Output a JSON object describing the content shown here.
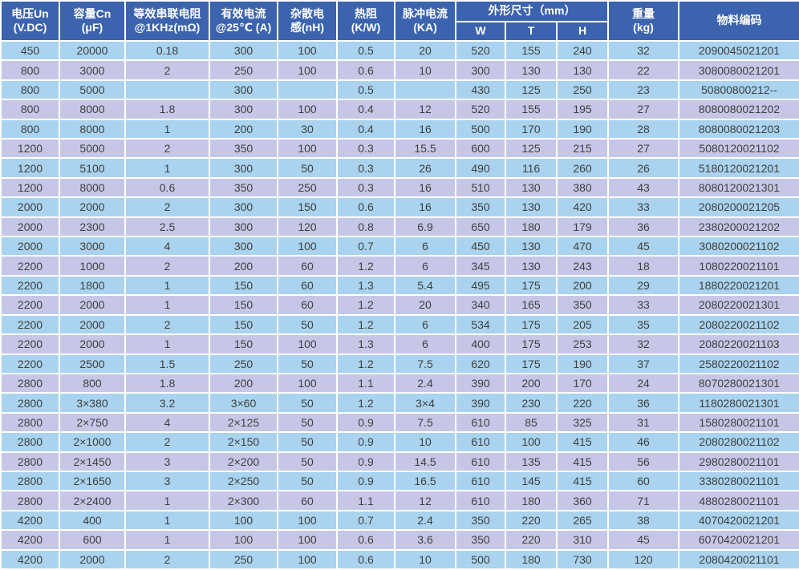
{
  "colors": {
    "header_bg": "#3b63ae",
    "row_alt_blue": "#a9d3ee",
    "row_alt_lavender": "#c6c7e7",
    "grid_line": "#ffffff",
    "cell_text": "#3f3f3f",
    "header_text": "#ffffff"
  },
  "table": {
    "column_ids": [
      "voltage",
      "capacitance",
      "esr",
      "current",
      "inductance",
      "thermal",
      "pulse",
      "w",
      "t",
      "h",
      "weight",
      "code"
    ],
    "header": {
      "voltage": "电压Un\n(V.DC)",
      "capacitance": "容量Cn\n(μF)",
      "esr": "等效串联电阻\n@1KHz(mΩ)",
      "current": "有效电流\n@25℃  (A)",
      "inductance": "杂散电\n感(nH)",
      "thermal": "热阻\n(K/W)",
      "pulse": "脉冲电流\n(KA)",
      "dimensions_group": "外形尺寸（mm）",
      "dim_w": "W",
      "dim_t": "T",
      "dim_h": "H",
      "weight": "重量\n(kg)",
      "code": "物料编码"
    },
    "rows": [
      [
        "450",
        "20000",
        "0.18",
        "300",
        "100",
        "0.5",
        "20",
        "520",
        "155",
        "240",
        "32",
        "2090045021201"
      ],
      [
        "800",
        "3000",
        "2",
        "250",
        "100",
        "0.6",
        "10",
        "300",
        "130",
        "130",
        "22",
        "3080080021201"
      ],
      [
        "800",
        "5000",
        "",
        "300",
        "",
        "0.5",
        "",
        "430",
        "125",
        "250",
        "23",
        "50800800212--"
      ],
      [
        "800",
        "8000",
        "1.8",
        "300",
        "100",
        "0.4",
        "12",
        "520",
        "155",
        "195",
        "27",
        "8080080021202"
      ],
      [
        "800",
        "8000",
        "1",
        "200",
        "30",
        "0.4",
        "16",
        "500",
        "170",
        "190",
        "28",
        "8080080021203"
      ],
      [
        "1200",
        "5000",
        "2",
        "350",
        "100",
        "0.3",
        "15.5",
        "600",
        "125",
        "215",
        "27",
        "5080120021102"
      ],
      [
        "1200",
        "5100",
        "1",
        "300",
        "50",
        "0.3",
        "26",
        "490",
        "116",
        "260",
        "26",
        "5180120021201"
      ],
      [
        "1200",
        "8000",
        "0.6",
        "350",
        "250",
        "0.3",
        "16",
        "510",
        "130",
        "380",
        "43",
        "8080120021301"
      ],
      [
        "2000",
        "2000",
        "2",
        "300",
        "150",
        "0.6",
        "16",
        "350",
        "130",
        "420",
        "33",
        "2080200021205"
      ],
      [
        "2000",
        "2300",
        "2.5",
        "300",
        "120",
        "0.8",
        "6.9",
        "650",
        "180",
        "179",
        "36",
        "2380200021202"
      ],
      [
        "2000",
        "3000",
        "4",
        "300",
        "100",
        "0.7",
        "6",
        "450",
        "130",
        "470",
        "45",
        "3080200021102"
      ],
      [
        "2200",
        "1000",
        "2",
        "200",
        "60",
        "1.2",
        "6",
        "345",
        "130",
        "243",
        "18",
        "1080220021101"
      ],
      [
        "2200",
        "1800",
        "1",
        "150",
        "60",
        "1.3",
        "5.4",
        "495",
        "175",
        "200",
        "29",
        "1880220021201"
      ],
      [
        "2200",
        "2000",
        "1",
        "150",
        "60",
        "1.2",
        "20",
        "340",
        "165",
        "350",
        "33",
        "2080220021301"
      ],
      [
        "2200",
        "2000",
        "2",
        "150",
        "50",
        "1.2",
        "6",
        "534",
        "175",
        "205",
        "35",
        "2080220021102"
      ],
      [
        "2200",
        "2000",
        "1",
        "150",
        "100",
        "1.3",
        "6",
        "400",
        "175",
        "253",
        "32",
        "2080220021103"
      ],
      [
        "2200",
        "2500",
        "1.5",
        "250",
        "50",
        "1.2",
        "7.5",
        "620",
        "175",
        "190",
        "37",
        "2580220021102"
      ],
      [
        "2800",
        "800",
        "1.8",
        "200",
        "100",
        "1.1",
        "2.4",
        "390",
        "200",
        "170",
        "24",
        "8070280021301"
      ],
      [
        "2800",
        "3×380",
        "3.2",
        "3×60",
        "50",
        "1.2",
        "3×4",
        "390",
        "230",
        "220",
        "36",
        "1180280021301"
      ],
      [
        "2800",
        "2×750",
        "4",
        "2×125",
        "50",
        "0.9",
        "7.5",
        "610",
        "85",
        "325",
        "31",
        "1580280021101"
      ],
      [
        "2800",
        "2×1000",
        "2",
        "2×150",
        "50",
        "0.9",
        "10",
        "610",
        "100",
        "415",
        "46",
        "2080280021102"
      ],
      [
        "2800",
        "2×1450",
        "3",
        "2×200",
        "50",
        "0.9",
        "14.5",
        "610",
        "135",
        "415",
        "56",
        "2980280021101"
      ],
      [
        "2800",
        "2×1650",
        "3",
        "2×250",
        "50",
        "0.9",
        "16.5",
        "610",
        "145",
        "415",
        "60",
        "3380280021101"
      ],
      [
        "2800",
        "2×2400",
        "1",
        "2×300",
        "60",
        "1.1",
        "12",
        "610",
        "180",
        "360",
        "71",
        "4880280021101"
      ],
      [
        "4200",
        "400",
        "1",
        "100",
        "100",
        "0.7",
        "2.4",
        "350",
        "220",
        "265",
        "38",
        "4070420021201"
      ],
      [
        "4200",
        "600",
        "1",
        "100",
        "100",
        "0.6",
        "3.6",
        "350",
        "220",
        "310",
        "45",
        "6070420021201"
      ],
      [
        "4200",
        "2000",
        "2",
        "250",
        "100",
        "0.6",
        "10",
        "500",
        "180",
        "730",
        "120",
        "2080420021101"
      ]
    ]
  }
}
